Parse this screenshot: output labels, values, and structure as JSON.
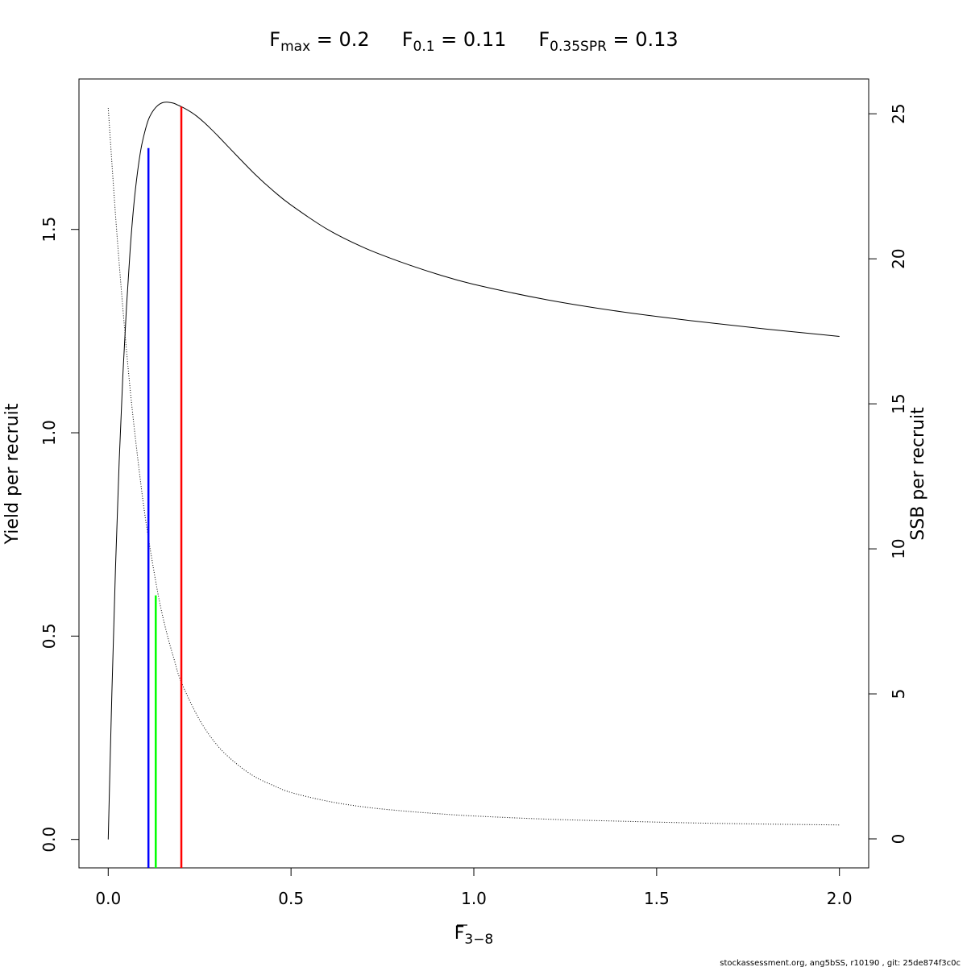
{
  "chart_data": {
    "type": "line",
    "title": {
      "fmax": {
        "main": "F",
        "sub": "max",
        "rest": " = 0.2"
      },
      "f01": {
        "main": "F",
        "sub": "0.1",
        "rest": " = 0.11"
      },
      "fspr": {
        "main": "F",
        "sub": "0.35SPR",
        "rest": " = 0.13"
      }
    },
    "xlabel": {
      "main": "F",
      "sub": "3−8"
    },
    "ylabel": "Yield per recruit",
    "y2label": "SSB per recruit",
    "xlim": [
      -0.08,
      2.08
    ],
    "ylim": [
      -0.07,
      1.87
    ],
    "y2lim": [
      -1,
      26.2
    ],
    "x_ticks": [
      "0.0",
      "0.5",
      "1.0",
      "1.5",
      "2.0"
    ],
    "y_ticks": [
      "0.0",
      "0.5",
      "1.0",
      "1.5"
    ],
    "y2_ticks": [
      "0",
      "5",
      "10",
      "15",
      "20",
      "25"
    ],
    "grid": false,
    "series": [
      {
        "axis": "left",
        "style": "solid",
        "color": "#000000",
        "x": [
          0,
          0.01,
          0.02,
          0.03,
          0.04,
          0.05,
          0.06,
          0.07,
          0.08,
          0.09,
          0.1,
          0.11,
          0.12,
          0.13,
          0.14,
          0.15,
          0.16,
          0.17,
          0.18,
          0.19,
          0.2,
          0.22,
          0.24,
          0.26,
          0.28,
          0.3,
          0.35,
          0.4,
          0.45,
          0.5,
          0.6,
          0.7,
          0.8,
          0.9,
          1.0,
          1.2,
          1.4,
          1.6,
          1.8,
          2.0
        ],
        "y": [
          0,
          0.36,
          0.67,
          0.93,
          1.14,
          1.31,
          1.45,
          1.56,
          1.64,
          1.7,
          1.74,
          1.77,
          1.788,
          1.8,
          1.808,
          1.812,
          1.813,
          1.812,
          1.81,
          1.806,
          1.802,
          1.792,
          1.78,
          1.765,
          1.748,
          1.73,
          1.683,
          1.637,
          1.596,
          1.56,
          1.5,
          1.455,
          1.42,
          1.39,
          1.365,
          1.327,
          1.298,
          1.275,
          1.255,
          1.237
        ]
      },
      {
        "axis": "right",
        "style": "dotted",
        "color": "#000000",
        "x": [
          0,
          0.02,
          0.04,
          0.06,
          0.08,
          0.1,
          0.12,
          0.14,
          0.16,
          0.18,
          0.2,
          0.25,
          0.3,
          0.35,
          0.4,
          0.45,
          0.5,
          0.6,
          0.7,
          0.8,
          0.9,
          1.0,
          1.2,
          1.4,
          1.6,
          1.8,
          2.0
        ],
        "y": [
          25.2,
          21.5,
          18.3,
          15.5,
          13.2,
          11.2,
          9.6,
          8.2,
          7.1,
          6.2,
          5.4,
          4.1,
          3.2,
          2.6,
          2.15,
          1.85,
          1.6,
          1.3,
          1.1,
          0.97,
          0.87,
          0.79,
          0.68,
          0.61,
          0.55,
          0.51,
          0.48
        ]
      }
    ],
    "reference_lines": [
      {
        "name": "F0.1",
        "x": 0.11,
        "y_top": 1.7,
        "color": "#0000ff"
      },
      {
        "name": "F0.35SPR",
        "x": 0.13,
        "y_top": 0.6,
        "color": "#00ff00"
      },
      {
        "name": "Fmax",
        "x": 0.2,
        "y_top": 1.802,
        "color": "#ff0000"
      }
    ]
  },
  "footer": "stockassessment.org, ang5bSS, r10190 , git: 25de874f3c0c"
}
